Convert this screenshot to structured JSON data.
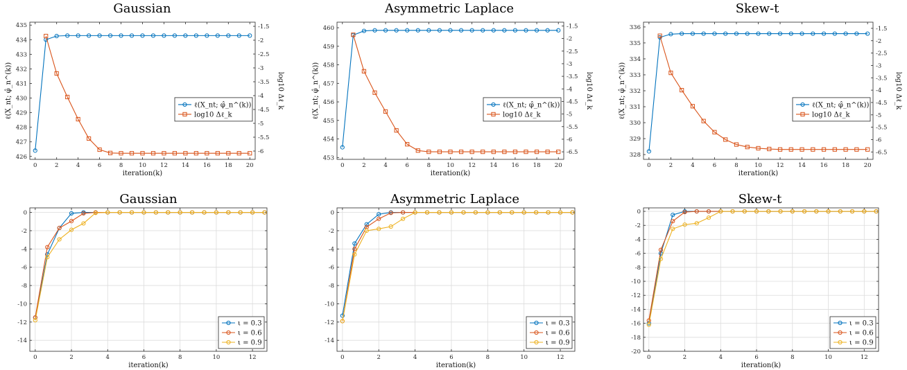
{
  "colors": {
    "blue": "#0072BD",
    "orange": "#D95319",
    "yellow": "#EDB120"
  },
  "chart_data": [
    {
      "type": "line",
      "title": "Gaussian",
      "xlabel": "iteration(k)",
      "ylabel": "ℓ(X_nt; φ̂_n^(k))",
      "ylabel_right": "log10 Δℓ_k",
      "xlim": [
        -0.5,
        20.5
      ],
      "xticks": [
        0,
        2,
        4,
        6,
        8,
        10,
        12,
        14,
        16,
        18,
        20
      ],
      "ylim": [
        425.8,
        435.2
      ],
      "yticks": [
        426,
        427,
        428,
        429,
        430,
        431,
        432,
        433,
        434,
        435
      ],
      "ylim_right": [
        -6.3,
        -1.35
      ],
      "yticks_right": [
        -6,
        -5.5,
        -5,
        -4.5,
        -4,
        -3.5,
        -3,
        -2.5,
        -2,
        -1.5
      ],
      "legend": "right",
      "grid": false,
      "series": [
        {
          "name": "ℓ(X_nt; φ̂_n^(k))",
          "axis": "left",
          "color": "#0072BD",
          "marker": "circle",
          "x": [
            0,
            1,
            2,
            3,
            4,
            5,
            6,
            7,
            8,
            9,
            10,
            11,
            12,
            13,
            14,
            15,
            16,
            17,
            18,
            19,
            20
          ],
          "values": [
            426.4,
            434.0,
            434.25,
            434.28,
            434.28,
            434.28,
            434.28,
            434.28,
            434.28,
            434.28,
            434.28,
            434.28,
            434.28,
            434.28,
            434.28,
            434.28,
            434.28,
            434.28,
            434.28,
            434.28,
            434.28
          ]
        },
        {
          "name": "log10 Δℓ_k",
          "axis": "right",
          "color": "#D95319",
          "marker": "square",
          "x": [
            1,
            2,
            3,
            4,
            5,
            6,
            7,
            8,
            9,
            10,
            11,
            12,
            13,
            14,
            15,
            16,
            17,
            18,
            19,
            20
          ],
          "values": [
            -1.85,
            -3.2,
            -4.05,
            -4.85,
            -5.55,
            -5.95,
            -6.07,
            -6.08,
            -6.08,
            -6.08,
            -6.08,
            -6.08,
            -6.08,
            -6.08,
            -6.08,
            -6.08,
            -6.08,
            -6.08,
            -6.08,
            -6.08
          ]
        }
      ]
    },
    {
      "type": "line",
      "title": "Asymmetric Laplace",
      "xlabel": "iteration(k)",
      "ylabel": "ℓ(X_nt; φ̂_n^(k))",
      "ylabel_right": "log10 Δℓ_k",
      "xlim": [
        -0.5,
        20.5
      ],
      "xticks": [
        0,
        2,
        4,
        6,
        8,
        10,
        12,
        14,
        16,
        18,
        20
      ],
      "ylim": [
        452.9,
        460.3
      ],
      "yticks": [
        453,
        454,
        455,
        456,
        457,
        458,
        459,
        460
      ],
      "ylim_right": [
        -6.8,
        -1.35
      ],
      "yticks_right": [
        -6.5,
        -6,
        -5.5,
        -5,
        -4.5,
        -4,
        -3.5,
        -3,
        -2.5,
        -2,
        -1.5
      ],
      "legend": "right",
      "grid": false,
      "series": [
        {
          "name": "ℓ(X_nt; φ̂_n^(k))",
          "axis": "left",
          "color": "#0072BD",
          "marker": "circle",
          "x": [
            0,
            1,
            2,
            3,
            4,
            5,
            6,
            7,
            8,
            9,
            10,
            11,
            12,
            13,
            14,
            15,
            16,
            17,
            18,
            19,
            20
          ],
          "values": [
            453.55,
            459.6,
            459.83,
            459.86,
            459.86,
            459.86,
            459.86,
            459.86,
            459.86,
            459.86,
            459.86,
            459.86,
            459.86,
            459.86,
            459.86,
            459.86,
            459.86,
            459.86,
            459.86,
            459.86,
            459.86
          ]
        },
        {
          "name": "log10 Δℓ_k",
          "axis": "right",
          "color": "#D95319",
          "marker": "square",
          "x": [
            1,
            2,
            3,
            4,
            5,
            6,
            7,
            8,
            9,
            10,
            11,
            12,
            13,
            14,
            15,
            16,
            17,
            18,
            19,
            20
          ],
          "values": [
            -1.85,
            -3.3,
            -4.15,
            -4.9,
            -5.65,
            -6.2,
            -6.45,
            -6.5,
            -6.5,
            -6.5,
            -6.5,
            -6.5,
            -6.5,
            -6.5,
            -6.5,
            -6.5,
            -6.5,
            -6.5,
            -6.5,
            -6.5
          ]
        }
      ]
    },
    {
      "type": "line",
      "title": "Skew-t",
      "xlabel": "iteration(k)",
      "ylabel": "ℓ(X_nt; φ̂_n^(k))",
      "ylabel_right": "log10 Δℓ_k",
      "xlim": [
        -0.5,
        20.5
      ],
      "xticks": [
        0,
        2,
        4,
        6,
        8,
        10,
        12,
        14,
        16,
        18,
        20
      ],
      "ylim": [
        327.7,
        336.3
      ],
      "yticks": [
        328,
        329,
        330,
        331,
        332,
        333,
        334,
        335,
        336
      ],
      "ylim_right": [
        -6.8,
        -1.25
      ],
      "yticks_right": [
        -6.5,
        -6,
        -5.5,
        -5,
        -4.5,
        -4,
        -3.5,
        -3,
        -2.5,
        -2,
        -1.5
      ],
      "legend": "right",
      "grid": false,
      "series": [
        {
          "name": "ℓ(X_nt; φ̂_n^(k))",
          "axis": "left",
          "color": "#0072BD",
          "marker": "circle",
          "x": [
            0,
            1,
            2,
            3,
            4,
            5,
            6,
            7,
            8,
            9,
            10,
            11,
            12,
            13,
            14,
            15,
            16,
            17,
            18,
            19,
            20
          ],
          "values": [
            328.2,
            335.35,
            335.55,
            335.58,
            335.58,
            335.58,
            335.58,
            335.58,
            335.58,
            335.58,
            335.58,
            335.58,
            335.58,
            335.58,
            335.58,
            335.58,
            335.58,
            335.58,
            335.58,
            335.58,
            335.58
          ]
        },
        {
          "name": "log10 Δℓ_k",
          "axis": "right",
          "color": "#D95319",
          "marker": "square",
          "x": [
            1,
            2,
            3,
            4,
            5,
            6,
            7,
            8,
            9,
            10,
            11,
            12,
            13,
            14,
            15,
            16,
            17,
            18,
            19,
            20
          ],
          "values": [
            -1.8,
            -3.3,
            -4.0,
            -4.65,
            -5.25,
            -5.7,
            -6.0,
            -6.2,
            -6.3,
            -6.35,
            -6.38,
            -6.4,
            -6.4,
            -6.4,
            -6.4,
            -6.4,
            -6.4,
            -6.4,
            -6.4,
            -6.4
          ]
        }
      ]
    },
    {
      "type": "line",
      "title": "Gaussian",
      "xlabel": "iteration(k)",
      "xlim": [
        -0.3,
        12.8
      ],
      "xticks": [
        0,
        2,
        4,
        6,
        8,
        10,
        12
      ],
      "ylim": [
        -15.2,
        0.5
      ],
      "yticks": [
        0,
        -2,
        -4,
        -6,
        -8,
        -10,
        -12,
        -14
      ],
      "legend": "bottom-right",
      "grid": true,
      "series": [
        {
          "name": "ι = 0.3",
          "color": "#0072BD",
          "marker": "circle",
          "x": [
            0,
            0.667,
            1.333,
            2,
            2.667,
            3.333,
            4,
            4.667,
            5.333,
            6,
            6.667,
            7.333,
            8,
            8.667,
            9.333,
            10,
            10.667,
            11.333,
            12,
            12.667
          ],
          "values": [
            -11.5,
            -4.6,
            -1.7,
            -0.1,
            0,
            0,
            0,
            0,
            0,
            0,
            0,
            0,
            0,
            0,
            0,
            0,
            0,
            0,
            0,
            0
          ]
        },
        {
          "name": "ι = 0.6",
          "color": "#D95319",
          "marker": "circle",
          "x": [
            0,
            0.667,
            1.333,
            2,
            2.667,
            3.333,
            4,
            4.667,
            5.333,
            6,
            6.667,
            7.333,
            8,
            8.667,
            9.333,
            10,
            10.667,
            11.333,
            12,
            12.667
          ],
          "values": [
            -11.5,
            -3.8,
            -1.7,
            -0.95,
            -0.1,
            0,
            0,
            0,
            0,
            0,
            0,
            0,
            0,
            0,
            0,
            0,
            0,
            0,
            0,
            0
          ]
        },
        {
          "name": "ι = 0.9",
          "color": "#EDB120",
          "marker": "circle",
          "x": [
            0,
            0.667,
            1.333,
            2,
            2.667,
            3.333,
            4,
            4.667,
            5.333,
            6,
            6.667,
            7.333,
            8,
            8.667,
            9.333,
            10,
            10.667,
            11.333,
            12,
            12.667
          ],
          "values": [
            -11.8,
            -4.9,
            -2.95,
            -1.9,
            -1.2,
            -0.05,
            0,
            0,
            0,
            0,
            0,
            0,
            0,
            0,
            0,
            0,
            0,
            0,
            0,
            0
          ]
        }
      ]
    },
    {
      "type": "line",
      "title": "Asymmetric Laplace",
      "xlabel": "iteration(k)",
      "xlim": [
        -0.3,
        12.8
      ],
      "xticks": [
        0,
        2,
        4,
        6,
        8,
        10,
        12
      ],
      "ylim": [
        -15.2,
        0.5
      ],
      "yticks": [
        0,
        -2,
        -4,
        -6,
        -8,
        -10,
        -12,
        -14
      ],
      "legend": "bottom-right",
      "grid": true,
      "series": [
        {
          "name": "ι = 0.3",
          "color": "#0072BD",
          "marker": "circle",
          "x": [
            0,
            0.667,
            1.333,
            2,
            2.667,
            3.333,
            4,
            4.667,
            5.333,
            6,
            6.667,
            7.333,
            8,
            8.667,
            9.333,
            10,
            10.667,
            11.333,
            12,
            12.667
          ],
          "values": [
            -11.3,
            -3.4,
            -1.3,
            -0.2,
            0,
            0,
            0,
            0,
            0,
            0,
            0,
            0,
            0,
            0,
            0,
            0,
            0,
            0,
            0,
            0
          ]
        },
        {
          "name": "ι = 0.6",
          "color": "#D95319",
          "marker": "circle",
          "x": [
            0,
            0.667,
            1.333,
            2,
            2.667,
            3.333,
            4,
            4.667,
            5.333,
            6,
            6.667,
            7.333,
            8,
            8.667,
            9.333,
            10,
            10.667,
            11.333,
            12,
            12.667
          ],
          "values": [
            -11.9,
            -4.0,
            -1.6,
            -0.7,
            -0.05,
            0,
            0,
            0,
            0,
            0,
            0,
            0,
            0,
            0,
            0,
            0,
            0,
            0,
            0,
            0
          ]
        },
        {
          "name": "ι = 0.9",
          "color": "#EDB120",
          "marker": "circle",
          "x": [
            0,
            0.667,
            1.333,
            2,
            2.667,
            3.333,
            4,
            4.667,
            5.333,
            6,
            6.667,
            7.333,
            8,
            8.667,
            9.333,
            10,
            10.667,
            11.333,
            12,
            12.667
          ],
          "values": [
            -11.9,
            -4.6,
            -2.0,
            -1.8,
            -1.55,
            -0.7,
            0,
            0,
            0,
            0,
            0,
            0,
            0,
            0,
            0,
            0,
            0,
            0,
            0,
            0
          ]
        }
      ]
    },
    {
      "type": "line",
      "title": "Skew-t",
      "xlabel": "iteration(k)",
      "xlim": [
        -0.3,
        12.8
      ],
      "xticks": [
        0,
        2,
        4,
        6,
        8,
        10,
        12
      ],
      "ylim": [
        -20,
        0.5
      ],
      "yticks": [
        0,
        -2,
        -4,
        -6,
        -8,
        -10,
        -12,
        -14,
        -16,
        -18,
        -20
      ],
      "legend": "bottom-right",
      "grid": true,
      "series": [
        {
          "name": "ι = 0.3",
          "color": "#0072BD",
          "marker": "circle",
          "x": [
            0,
            0.667,
            1.333,
            2,
            2.667,
            3.333,
            4,
            4.667,
            5.333,
            6,
            6.667,
            7.333,
            8,
            8.667,
            9.333,
            10,
            10.667,
            11.333,
            12,
            12.667
          ],
          "values": [
            -16.0,
            -6.0,
            -0.5,
            0,
            0,
            0,
            0,
            0,
            0,
            0,
            0,
            0,
            0,
            0,
            0,
            0,
            0,
            0,
            0,
            0
          ]
        },
        {
          "name": "ι = 0.6",
          "color": "#D95319",
          "marker": "circle",
          "x": [
            0,
            0.667,
            1.333,
            2,
            2.667,
            3.333,
            4,
            4.667,
            5.333,
            6,
            6.667,
            7.333,
            8,
            8.667,
            9.333,
            10,
            10.667,
            11.333,
            12,
            12.667
          ],
          "values": [
            -15.6,
            -5.5,
            -1.4,
            -0.1,
            0,
            0,
            0,
            0,
            0,
            0,
            0,
            0,
            0,
            0,
            0,
            0,
            0,
            0,
            0,
            0
          ]
        },
        {
          "name": "ι = 0.9",
          "color": "#EDB120",
          "marker": "circle",
          "x": [
            0,
            0.667,
            1.333,
            2,
            2.667,
            3.333,
            4,
            4.667,
            5.333,
            6,
            6.667,
            7.333,
            8,
            8.667,
            9.333,
            10,
            10.667,
            11.333,
            12,
            12.667
          ],
          "values": [
            -16.2,
            -6.8,
            -2.5,
            -1.9,
            -1.7,
            -0.9,
            0,
            0,
            0,
            0,
            0,
            0,
            0,
            0,
            0,
            0,
            0,
            0,
            0,
            0
          ]
        }
      ]
    }
  ]
}
